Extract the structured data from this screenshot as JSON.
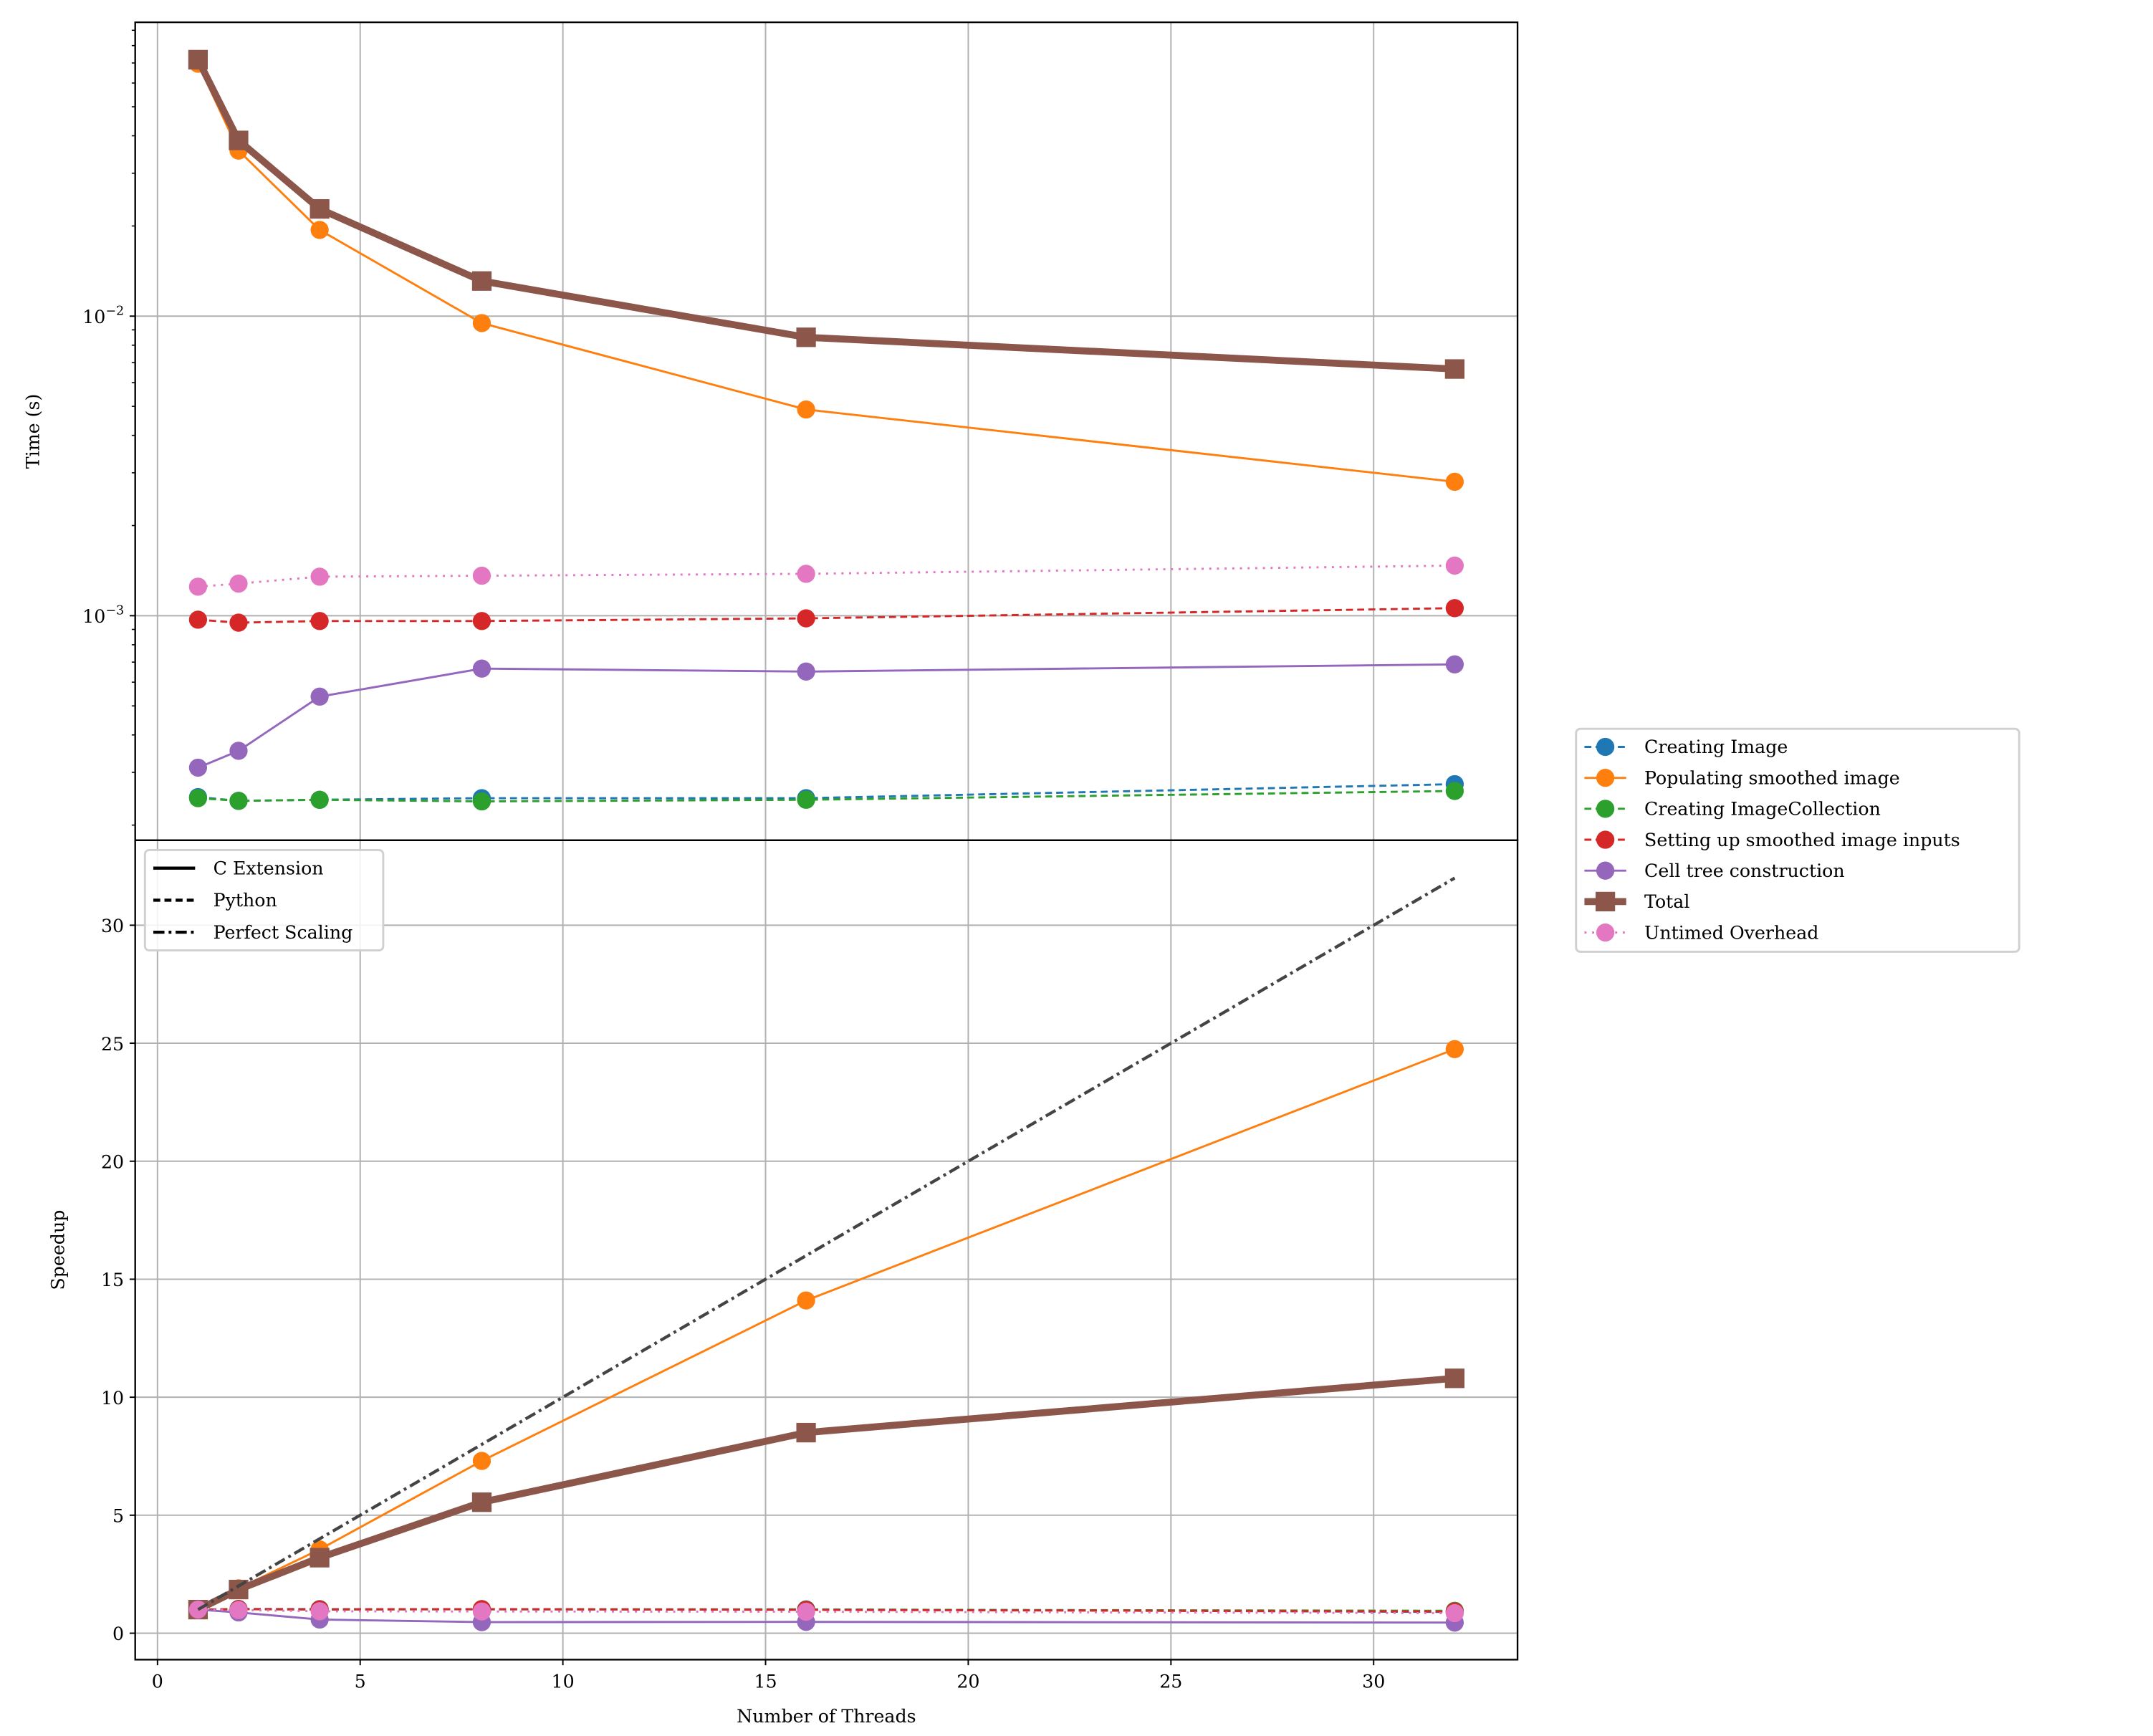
{
  "chart_data": [
    {
      "type": "line",
      "title": "",
      "xlabel": "",
      "ylabel": "Time (s)",
      "yscale": "log",
      "ylim": [
        0.000178,
        0.0957
      ],
      "xlim": [
        -0.55,
        33.55
      ],
      "yticks": [
        {
          "v": 0.01,
          "base": "10",
          "exp": "−2"
        },
        {
          "v": 0.001,
          "base": "10",
          "exp": "−3"
        }
      ],
      "grid": true,
      "x": [
        1,
        2,
        4,
        8,
        16,
        32
      ],
      "series": [
        {
          "name": "Creating Image",
          "color": "#1f77b4",
          "dash": "python",
          "marker": "circle",
          "values": [
            0.000248,
            0.000241,
            0.000243,
            0.000246,
            0.000246,
            0.000274
          ]
        },
        {
          "name": "Populating smoothed image",
          "color": "#ff7f0e",
          "dash": "c",
          "marker": "circle",
          "values": [
            0.0696,
            0.0357,
            0.0194,
            0.00948,
            0.00488,
            0.0028
          ]
        },
        {
          "name": "Creating ImageCollection",
          "color": "#2ca02c",
          "dash": "python",
          "marker": "circle",
          "values": [
            0.000246,
            0.000241,
            0.000243,
            0.00024,
            0.000243,
            0.00026
          ]
        },
        {
          "name": "Setting up smoothed image inputs",
          "color": "#d62728",
          "dash": "python",
          "marker": "circle",
          "values": [
            0.00097,
            0.000948,
            0.00096,
            0.00096,
            0.00098,
            0.00106
          ]
        },
        {
          "name": "Cell tree construction",
          "color": "#9467bd",
          "dash": "c",
          "marker": "circle",
          "values": [
            0.000311,
            0.000354,
            0.000537,
            0.000666,
            0.000651,
            0.000688
          ]
        },
        {
          "name": "Total",
          "color": "#8c564b",
          "dash": "c",
          "marker": "square",
          "thick": true,
          "values": [
            0.0718,
            0.0386,
            0.0228,
            0.0131,
            0.0085,
            0.00666
          ]
        },
        {
          "name": "Untimed Overhead",
          "color": "#e377c2",
          "dash": "dotted",
          "marker": "circle",
          "values": [
            0.00125,
            0.00128,
            0.00135,
            0.00136,
            0.00138,
            0.00147
          ]
        }
      ],
      "legend": {
        "placement": "right, outside",
        "entries": [
          "Creating Image",
          "Populating smoothed image",
          "Creating ImageCollection",
          "Setting up smoothed image inputs",
          "Cell tree construction",
          "Total",
          "Untimed Overhead"
        ]
      }
    },
    {
      "type": "line",
      "title": "",
      "xlabel": "Number of Threads",
      "ylabel": "Speedup",
      "ylim": [
        -1.12,
        33.6
      ],
      "xlim": [
        -0.55,
        33.55
      ],
      "xticks": [
        0,
        5,
        10,
        15,
        20,
        25,
        30
      ],
      "yticks": [
        0,
        5,
        10,
        15,
        20,
        25,
        30
      ],
      "grid": true,
      "x": [
        1,
        2,
        4,
        8,
        16,
        32
      ],
      "series": [
        {
          "name": "Creating Image",
          "color": "#1f77b4",
          "dash": "python",
          "values": [
            1,
            1.03,
            1.02,
            1.01,
            1.01,
            0.9
          ]
        },
        {
          "name": "Populating smoothed image",
          "color": "#ff7f0e",
          "dash": "c",
          "values": [
            1,
            1.9,
            3.55,
            7.3,
            14.1,
            24.75
          ]
        },
        {
          "name": "Creating ImageCollection",
          "color": "#2ca02c",
          "dash": "python",
          "values": [
            1,
            1.02,
            1.0,
            1.02,
            1.0,
            0.95
          ]
        },
        {
          "name": "Setting up smoothed image inputs",
          "color": "#d62728",
          "dash": "python",
          "values": [
            1,
            1.02,
            1.01,
            1.02,
            0.99,
            0.92
          ]
        },
        {
          "name": "Cell tree construction",
          "color": "#9467bd",
          "dash": "c",
          "values": [
            1,
            0.88,
            0.58,
            0.47,
            0.48,
            0.45
          ]
        },
        {
          "name": "Total",
          "color": "#8c564b",
          "dash": "c",
          "thick": true,
          "values": [
            1,
            1.85,
            3.2,
            5.55,
            8.5,
            10.8
          ]
        },
        {
          "name": "Untimed Overhead",
          "color": "#e377c2",
          "dash": "dotted",
          "values": [
            1,
            0.98,
            0.93,
            0.92,
            0.91,
            0.85
          ]
        },
        {
          "name": "Perfect Scaling",
          "color": "#444444",
          "dash": "dashdot",
          "values": [
            1,
            2,
            4,
            8,
            16,
            32
          ]
        }
      ],
      "legend": {
        "placement": "top-left",
        "entries": [
          "C Extension",
          "Python",
          "Perfect Scaling"
        ]
      }
    }
  ]
}
